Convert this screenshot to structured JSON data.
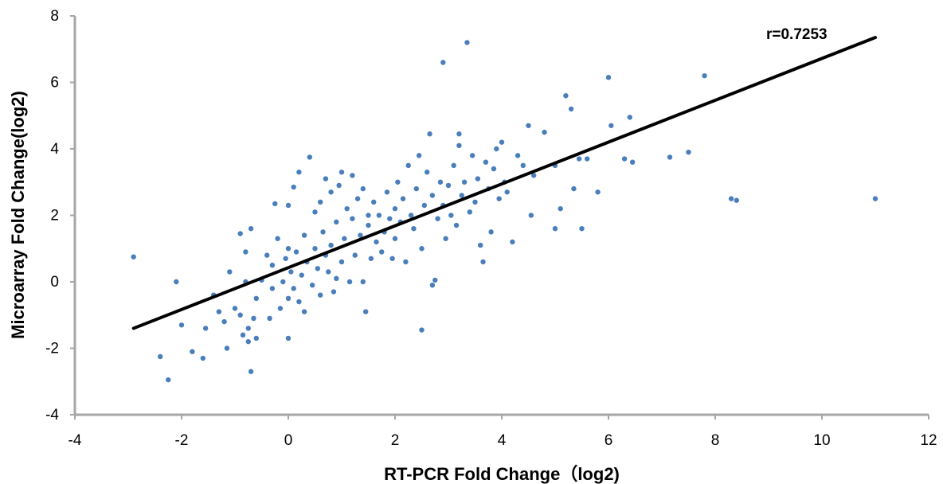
{
  "chart_data": {
    "type": "scatter",
    "xlabel": "RT-PCR Fold Change（log2)",
    "ylabel": "Microarray Fold Change(log2)",
    "xlim": [
      -4,
      12
    ],
    "ylim": [
      -4,
      8
    ],
    "x_ticks": [
      "-4",
      "-2",
      "0",
      "2",
      "4",
      "6",
      "8",
      "10",
      "12"
    ],
    "y_ticks": [
      "-4",
      "-2",
      "0",
      "2",
      "4",
      "6",
      "8"
    ],
    "grid": false,
    "legend": "none",
    "marker_color": "#4A7EBB",
    "trendline": {
      "color": "#000000",
      "from": [
        -2.9,
        -1.4
      ],
      "to": [
        11.0,
        7.35
      ]
    },
    "annotation": "r=0.7253",
    "points": [
      [
        -2.9,
        0.75
      ],
      [
        -2.4,
        -2.25
      ],
      [
        -2.25,
        -2.95
      ],
      [
        -2.1,
        0.0
      ],
      [
        -2.0,
        -1.3
      ],
      [
        -1.8,
        -2.1
      ],
      [
        -1.6,
        -2.3
      ],
      [
        -1.55,
        -1.4
      ],
      [
        -1.4,
        -0.4
      ],
      [
        -1.3,
        -0.9
      ],
      [
        -1.2,
        -1.2
      ],
      [
        -1.15,
        -2.0
      ],
      [
        -1.1,
        0.3
      ],
      [
        -1.0,
        -0.8
      ],
      [
        -0.9,
        -1.0
      ],
      [
        -0.9,
        1.45
      ],
      [
        -0.85,
        -1.6
      ],
      [
        -0.8,
        0.9
      ],
      [
        -0.8,
        0.0
      ],
      [
        -0.75,
        -1.4
      ],
      [
        -0.75,
        -1.8
      ],
      [
        -0.7,
        -2.7
      ],
      [
        -0.7,
        1.6
      ],
      [
        -0.65,
        -1.1
      ],
      [
        -0.6,
        -0.5
      ],
      [
        -0.6,
        -1.7
      ],
      [
        -0.5,
        0.05
      ],
      [
        -0.4,
        0.8
      ],
      [
        -0.35,
        -1.1
      ],
      [
        -0.3,
        -0.2
      ],
      [
        -0.3,
        0.5
      ],
      [
        -0.25,
        2.35
      ],
      [
        -0.2,
        1.3
      ],
      [
        -0.15,
        -0.8
      ],
      [
        -0.1,
        0.0
      ],
      [
        -0.05,
        0.7
      ],
      [
        0.0,
        2.3
      ],
      [
        0.0,
        1.0
      ],
      [
        0.0,
        -0.5
      ],
      [
        0.0,
        -1.7
      ],
      [
        0.05,
        0.3
      ],
      [
        0.1,
        -0.2
      ],
      [
        0.1,
        2.85
      ],
      [
        0.15,
        0.9
      ],
      [
        0.2,
        3.3
      ],
      [
        0.2,
        -0.6
      ],
      [
        0.25,
        0.2
      ],
      [
        0.3,
        -0.9
      ],
      [
        0.3,
        1.4
      ],
      [
        0.35,
        0.6
      ],
      [
        0.4,
        3.75
      ],
      [
        0.45,
        -0.1
      ],
      [
        0.5,
        1.0
      ],
      [
        0.5,
        2.1
      ],
      [
        0.55,
        0.4
      ],
      [
        0.6,
        -0.4
      ],
      [
        0.6,
        2.4
      ],
      [
        0.65,
        1.5
      ],
      [
        0.7,
        0.8
      ],
      [
        0.7,
        3.1
      ],
      [
        0.75,
        0.3
      ],
      [
        0.8,
        1.1
      ],
      [
        0.8,
        2.7
      ],
      [
        0.85,
        -0.3
      ],
      [
        0.9,
        1.8
      ],
      [
        0.9,
        0.1
      ],
      [
        0.95,
        2.9
      ],
      [
        1.0,
        0.6
      ],
      [
        1.0,
        3.3
      ],
      [
        1.05,
        1.3
      ],
      [
        1.1,
        2.2
      ],
      [
        1.15,
        0.0
      ],
      [
        1.2,
        3.2
      ],
      [
        1.2,
        1.9
      ],
      [
        1.25,
        0.8
      ],
      [
        1.3,
        2.5
      ],
      [
        1.35,
        1.4
      ],
      [
        1.4,
        0.0
      ],
      [
        1.4,
        2.8
      ],
      [
        1.45,
        -0.9
      ],
      [
        1.5,
        1.7
      ],
      [
        1.5,
        2.0
      ],
      [
        1.55,
        0.7
      ],
      [
        1.6,
        2.4
      ],
      [
        1.65,
        1.2
      ],
      [
        1.7,
        2.0
      ],
      [
        1.75,
        0.9
      ],
      [
        1.8,
        1.5
      ],
      [
        1.85,
        2.7
      ],
      [
        1.9,
        1.9
      ],
      [
        1.95,
        0.7
      ],
      [
        2.0,
        2.2
      ],
      [
        2.0,
        1.3
      ],
      [
        2.05,
        3.0
      ],
      [
        2.1,
        1.8
      ],
      [
        2.15,
        2.5
      ],
      [
        2.2,
        0.6
      ],
      [
        2.25,
        3.5
      ],
      [
        2.3,
        2.0
      ],
      [
        2.35,
        1.6
      ],
      [
        2.4,
        2.8
      ],
      [
        2.45,
        3.8
      ],
      [
        2.5,
        -1.45
      ],
      [
        2.5,
        1.0
      ],
      [
        2.55,
        2.3
      ],
      [
        2.6,
        3.3
      ],
      [
        2.65,
        4.45
      ],
      [
        2.7,
        2.6
      ],
      [
        2.7,
        -0.1
      ],
      [
        2.75,
        0.05
      ],
      [
        2.8,
        1.9
      ],
      [
        2.85,
        3.0
      ],
      [
        2.9,
        6.6
      ],
      [
        2.9,
        2.3
      ],
      [
        2.95,
        1.3
      ],
      [
        3.0,
        2.9
      ],
      [
        3.05,
        2.0
      ],
      [
        3.1,
        3.5
      ],
      [
        3.15,
        1.7
      ],
      [
        3.2,
        4.1
      ],
      [
        3.2,
        4.45
      ],
      [
        3.25,
        2.6
      ],
      [
        3.3,
        3.0
      ],
      [
        3.35,
        7.2
      ],
      [
        3.4,
        2.1
      ],
      [
        3.45,
        3.8
      ],
      [
        3.5,
        2.4
      ],
      [
        3.55,
        3.1
      ],
      [
        3.6,
        1.1
      ],
      [
        3.65,
        0.6
      ],
      [
        3.7,
        3.6
      ],
      [
        3.75,
        2.8
      ],
      [
        3.8,
        1.5
      ],
      [
        3.85,
        3.4
      ],
      [
        3.9,
        4.0
      ],
      [
        3.95,
        2.5
      ],
      [
        4.0,
        4.2
      ],
      [
        4.05,
        3.0
      ],
      [
        4.1,
        2.7
      ],
      [
        4.2,
        1.2
      ],
      [
        4.3,
        3.8
      ],
      [
        4.4,
        3.5
      ],
      [
        4.5,
        4.7
      ],
      [
        4.55,
        2.0
      ],
      [
        4.6,
        3.2
      ],
      [
        4.8,
        4.5
      ],
      [
        5.0,
        1.6
      ],
      [
        5.0,
        3.5
      ],
      [
        5.1,
        2.2
      ],
      [
        5.2,
        5.6
      ],
      [
        5.3,
        5.2
      ],
      [
        5.35,
        2.8
      ],
      [
        5.45,
        3.7
      ],
      [
        5.5,
        1.6
      ],
      [
        5.6,
        3.7
      ],
      [
        5.8,
        2.7
      ],
      [
        6.0,
        6.15
      ],
      [
        6.05,
        4.7
      ],
      [
        6.3,
        3.7
      ],
      [
        6.4,
        4.95
      ],
      [
        6.45,
        3.6
      ],
      [
        7.15,
        3.75
      ],
      [
        7.5,
        3.9
      ],
      [
        7.8,
        6.2
      ],
      [
        8.3,
        2.5
      ],
      [
        8.4,
        2.45
      ],
      [
        11.0,
        2.5
      ]
    ]
  }
}
